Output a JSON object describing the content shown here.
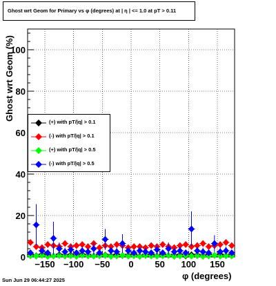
{
  "title": "Ghost wrt Geom for Primary vs φ (degrees) at | η | <= 1.0 at pT > 0.11",
  "datestamp": "Sun Jun 29 06:44:27 2025",
  "chart_data": {
    "type": "scatter",
    "xlabel": "φ (degrees)",
    "ylabel": "Ghost wrt Geom (%)",
    "xlim": [
      -180,
      180
    ],
    "ylim": [
      0,
      110
    ],
    "xticks": [
      -150,
      -100,
      -50,
      0,
      50,
      100,
      150
    ],
    "xtick_labels": [
      "−150",
      "−100",
      "−50",
      "0",
      "50",
      "100",
      "150"
    ],
    "yticks": [
      0,
      20,
      40,
      60,
      80,
      100
    ],
    "ytick_labels": [
      "0",
      "20",
      "40",
      "60",
      "80",
      "100"
    ],
    "grid": true,
    "legend_position": "center-left",
    "series": [
      {
        "name": "(+) with pT/|q| > 0.1",
        "color": "#000000",
        "x": [
          -175,
          -165,
          -155,
          -145,
          -135,
          -125,
          -115,
          -105,
          -95,
          -85,
          -75,
          -65,
          -55,
          -45,
          -35,
          -25,
          -15,
          -5,
          5,
          15,
          25,
          35,
          45,
          55,
          65,
          75,
          85,
          95,
          105,
          115,
          125,
          135,
          145,
          155,
          165,
          175
        ],
        "y": [
          1.0,
          0.6,
          1.2,
          0.8,
          0.5,
          1.1,
          0.7,
          1.0,
          0.6,
          1.3,
          0.8,
          0.5,
          1.0,
          0.9,
          0.6,
          1.2,
          0.7,
          0.8,
          1.1,
          0.5,
          0.9,
          1.0,
          0.6,
          1.2,
          0.8,
          0.7,
          1.0,
          0.5,
          1.1,
          0.9,
          0.6,
          1.0,
          0.8,
          1.2,
          0.7,
          0.9
        ]
      },
      {
        "name": "(-) with pT/|q| > 0.1",
        "color": "#ff0000",
        "x": [
          -175,
          -165,
          -155,
          -145,
          -135,
          -125,
          -115,
          -105,
          -95,
          -85,
          -75,
          -65,
          -55,
          -45,
          -35,
          -25,
          -15,
          -5,
          5,
          15,
          25,
          35,
          45,
          55,
          65,
          75,
          85,
          95,
          105,
          115,
          125,
          135,
          145,
          155,
          165,
          175
        ],
        "y": [
          7.0,
          5.0,
          4.5,
          6.0,
          5.5,
          5.0,
          6.5,
          5.0,
          5.5,
          6.0,
          5.0,
          6.5,
          4.5,
          5.5,
          5.0,
          6.0,
          5.5,
          4.5,
          5.0,
          5.0,
          4.5,
          5.5,
          5.0,
          6.0,
          5.0,
          4.5,
          5.5,
          6.0,
          5.0,
          5.5,
          6.5,
          5.0,
          5.5,
          6.0,
          7.0,
          5.5
        ]
      },
      {
        "name": "(+) with pT/|q| > 0.5",
        "color": "#00ff00",
        "x": [
          -175,
          -165,
          -155,
          -145,
          -135,
          -125,
          -115,
          -105,
          -95,
          -85,
          -75,
          -65,
          -55,
          -45,
          -35,
          -25,
          -15,
          -5,
          5,
          15,
          25,
          35,
          45,
          55,
          65,
          75,
          85,
          95,
          105,
          115,
          125,
          135,
          145,
          155,
          165,
          175
        ],
        "y": [
          0.6,
          0.4,
          0.8,
          0.3,
          0.5,
          0.7,
          0.4,
          0.6,
          0.3,
          0.8,
          0.5,
          0.4,
          0.6,
          0.7,
          0.3,
          0.5,
          0.8,
          0.4,
          0.6,
          0.3,
          0.7,
          0.5,
          0.4,
          0.6,
          0.8,
          0.3,
          0.5,
          0.7,
          0.4,
          0.6,
          0.3,
          0.5,
          0.8,
          0.4,
          0.6,
          0.5
        ]
      },
      {
        "name": "(-) with pT/|q| > 0.5",
        "color": "#0000ff",
        "x": [
          -175,
          -165,
          -155,
          -145,
          -135,
          -125,
          -115,
          -105,
          -95,
          -85,
          -75,
          -65,
          -55,
          -45,
          -35,
          -25,
          -15,
          -5,
          5,
          15,
          25,
          35,
          45,
          55,
          65,
          75,
          85,
          95,
          105,
          115,
          125,
          135,
          145,
          155,
          165,
          175
        ],
        "y": [
          2.0,
          15.5,
          3.0,
          2.0,
          9.0,
          4.0,
          2.5,
          3.5,
          2.0,
          3.0,
          2.5,
          4.0,
          2.0,
          8.5,
          3.0,
          2.5,
          6.5,
          3.0,
          2.0,
          3.0,
          2.5,
          2.0,
          3.5,
          2.0,
          4.0,
          2.5,
          3.0,
          2.0,
          13.5,
          3.0,
          2.5,
          2.0,
          6.5,
          2.5,
          3.0,
          2.0
        ],
        "err": [
          1.0,
          10.0,
          2.0,
          1.5,
          8.0,
          3.0,
          2.0,
          2.5,
          1.5,
          2.0,
          2.0,
          3.0,
          1.5,
          5.0,
          2.0,
          2.0,
          4.5,
          2.0,
          1.5,
          2.0,
          2.0,
          1.5,
          2.5,
          1.5,
          3.0,
          2.0,
          2.0,
          1.5,
          8.5,
          2.0,
          2.0,
          1.5,
          4.0,
          2.0,
          2.0,
          1.5
        ]
      }
    ]
  }
}
